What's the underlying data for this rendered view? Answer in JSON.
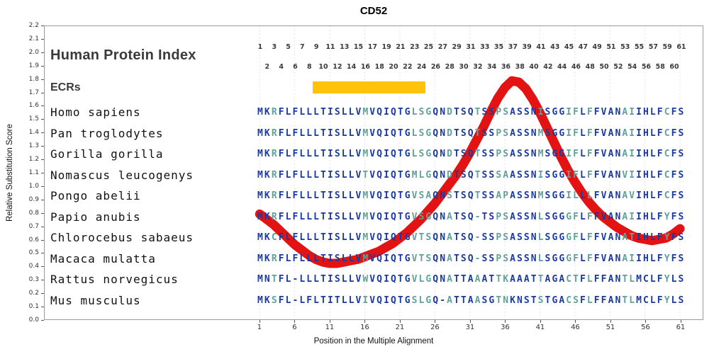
{
  "title": "CD52",
  "axes": {
    "y_label": "Relative Substitution Score",
    "x_label": "Position in the Multiple Alignment",
    "y_min": 0.0,
    "y_max": 2.2,
    "y_tick_labels": [
      "0.0",
      "0.1",
      "0.2",
      "0.3",
      "0.4",
      "0.5",
      "0.6",
      "0.7",
      "0.8",
      "0.9",
      "1.0",
      "1.1",
      "1.2",
      "1.3",
      "1.4",
      "1.5",
      "1.6",
      "1.7",
      "1.8",
      "1.9",
      "2.0",
      "2.1",
      "2.2"
    ],
    "x_ticks": [
      1,
      6,
      11,
      16,
      21,
      26,
      31,
      36,
      41,
      46,
      51,
      56,
      61
    ]
  },
  "header": {
    "index_label": "Human Protein Index",
    "odd_numbers": [
      1,
      3,
      5,
      7,
      9,
      11,
      13,
      15,
      17,
      19,
      21,
      23,
      25,
      27,
      29,
      31,
      33,
      35,
      37,
      39,
      41,
      43,
      45,
      47,
      49,
      51,
      53,
      55,
      57,
      59,
      61
    ],
    "even_numbers": [
      2,
      4,
      6,
      8,
      10,
      12,
      14,
      16,
      18,
      20,
      22,
      24,
      26,
      28,
      30,
      32,
      34,
      36,
      38,
      40,
      42,
      44,
      46,
      48,
      50,
      52,
      54,
      56,
      58,
      60
    ]
  },
  "ecr": {
    "label": "ECRs",
    "start": 9,
    "end": 24,
    "color": "#FFC30B"
  },
  "alignment": {
    "length": 61,
    "colors": {
      "conserved": "#1B3A9E",
      "variable": "#63A09A"
    },
    "species": [
      {
        "name": "Homo sapiens",
        "sequence": "MKRFLFLLLTISLLVMVQIQTGLSGQNDTSQTSSPSASSNISGGIFLFFVANAIIHLFCFS"
      },
      {
        "name": "Pan troglodytes",
        "sequence": "MKRFLFLLLTISLLVMVQIQTGLSGQNDTSQTSSPSASSNMSGGIFLFFVANAIIHLFCFS"
      },
      {
        "name": "Gorilla gorilla",
        "sequence": "MKRFLFLLLTISLLVMVQIQTGLSGQNDTSQTSSPSASSNMSGGIFLFFVANAIIHLFCFS"
      },
      {
        "name": "Nomascus leucogenys",
        "sequence": "MKRFLFLLLTISLLVTVQIQTGMLGQNDTSQTSSSAASSNISGGIFLFFVANVIIHLFCFS"
      },
      {
        "name": "Pongo abelii",
        "sequence": "MKRFLFLLLTISLLVMVQIQTGVSAQNSTSQTSSAPASSNMSGGILLLFVANAVIHLFCFS"
      },
      {
        "name": "Papio anubis",
        "sequence": "MKRFLFLLLTISLLVMVQIQTGVSGQNATSQ-TSPSASSNLSGGGFLFFVANAIIHLFYFS"
      },
      {
        "name": "Chlorocebus sabaeus",
        "sequence": "MKCFLFLLLTISLLVMVQIQTGVTSQNATSQ-SSPSASSNLSGGGFLFFVANATIHLFYFS"
      },
      {
        "name": "Macaca mulatta",
        "sequence": "MKRFLFLLLTISLLVMVQIQTGVTSQNATSQ-SSPSASSNLSGGGFLFFVANAIIHLFYFS"
      },
      {
        "name": "Rattus norvegicus",
        "sequence": "MNTFL-LLLTISLLVWVQIQTGVLGQNATTAAATTKAAATTAGACTFLFFANTLMCLFYLS"
      },
      {
        "name": "Mus musculus",
        "sequence": "MKSFL-LFLTITLLVIVQIQTGSLGQ-ATTAASGTNKNSTSTGACSFLFFANTLMCLFYLS"
      }
    ]
  },
  "chart_data": {
    "type": "line",
    "title": "CD52",
    "xlabel": "Position in the Multiple Alignment",
    "ylabel": "Relative Substitution Score",
    "xlim": [
      1,
      61
    ],
    "ylim": [
      0,
      2.2
    ],
    "grid": "vertical-dashed",
    "legend": "none",
    "color": "#E41313",
    "series_name": "Relative Substitution Score",
    "positions": [
      1,
      2,
      3,
      4,
      5,
      6,
      7,
      8,
      9,
      10,
      11,
      12,
      13,
      14,
      15,
      16,
      17,
      18,
      19,
      20,
      21,
      22,
      23,
      24,
      25,
      26,
      27,
      28,
      29,
      30,
      31,
      32,
      33,
      34,
      35,
      36,
      37,
      38,
      39,
      40,
      41,
      42,
      43,
      44,
      45,
      46,
      47,
      48,
      49,
      50,
      51,
      52,
      53,
      54,
      55,
      56,
      57,
      58,
      59,
      60,
      61
    ],
    "values": [
      0.79,
      0.75,
      0.71,
      0.66,
      0.61,
      0.56,
      0.52,
      0.48,
      0.45,
      0.43,
      0.42,
      0.42,
      0.43,
      0.44,
      0.45,
      0.47,
      0.49,
      0.51,
      0.54,
      0.57,
      0.61,
      0.65,
      0.7,
      0.75,
      0.81,
      0.87,
      0.94,
      1.01,
      1.08,
      1.16,
      1.25,
      1.35,
      1.45,
      1.56,
      1.66,
      1.74,
      1.79,
      1.78,
      1.73,
      1.65,
      1.55,
      1.44,
      1.33,
      1.22,
      1.12,
      1.03,
      0.95,
      0.88,
      0.82,
      0.77,
      0.73,
      0.69,
      0.66,
      0.63,
      0.61,
      0.6,
      0.59,
      0.6,
      0.61,
      0.64,
      0.68
    ]
  }
}
